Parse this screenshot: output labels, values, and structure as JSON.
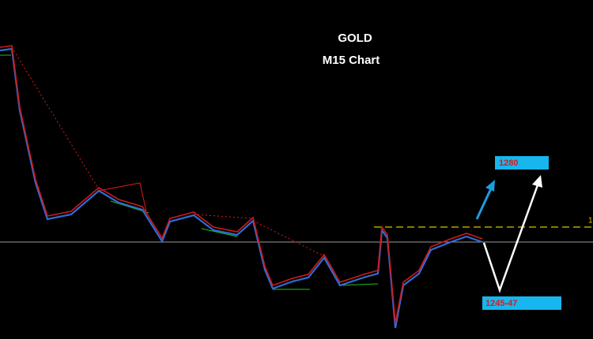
{
  "header": {
    "title": "GOLD",
    "subtitle": "M15 Chart"
  },
  "labels": {
    "target_up": "1280",
    "target_down": "1245-47",
    "level": "1"
  }
}
